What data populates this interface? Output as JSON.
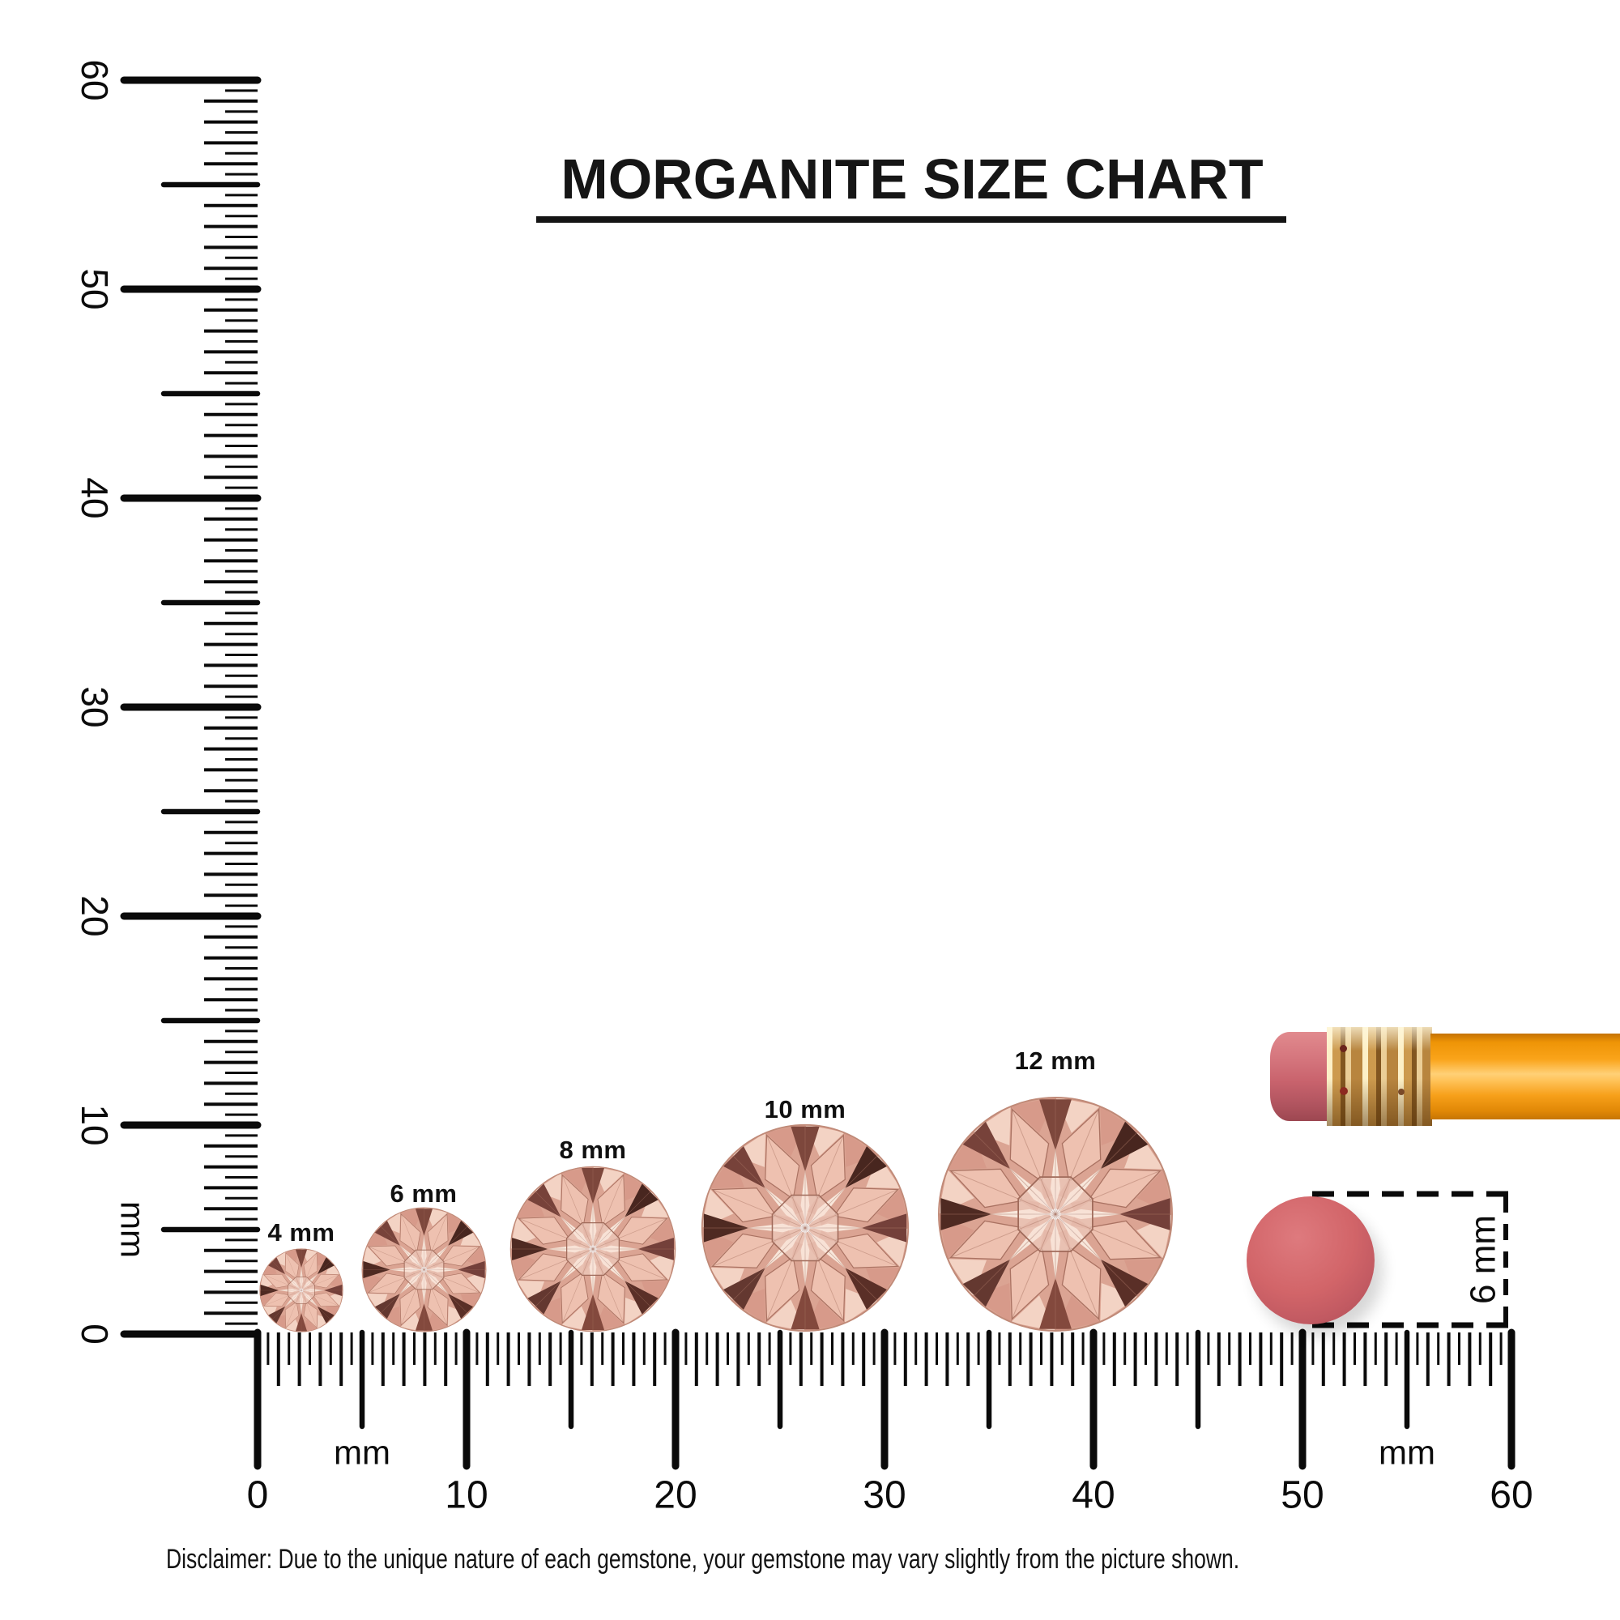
{
  "title": {
    "text": "MORGANITE SIZE CHART"
  },
  "rulers": {
    "unit": "mm",
    "range_mm": [
      0,
      60
    ],
    "tick_step_mm": 0.5,
    "major_step_mm": 10,
    "color": "#0a0a0a",
    "vertical_labels": [
      "0",
      "10",
      "20",
      "30",
      "40",
      "50",
      "60"
    ],
    "horizontal_labels": [
      "0",
      "10",
      "20",
      "30",
      "40",
      "50",
      "60"
    ],
    "vertical_unit_label": "mm",
    "horizontal_unit_labels": [
      "mm",
      "mm"
    ]
  },
  "gems": [
    {
      "label": "4 mm",
      "size_mm": 4
    },
    {
      "label": "6 mm",
      "size_mm": 6
    },
    {
      "label": "8 mm",
      "size_mm": 8
    },
    {
      "label": "10 mm",
      "size_mm": 10
    },
    {
      "label": "12 mm",
      "size_mm": 12
    }
  ],
  "gem_palette": {
    "base": "#dba493",
    "girdle_light": "#f3d3c4",
    "girdle_mid": "#d79a8a",
    "kite": "#eec1b0",
    "kite_edge": "#aa7262",
    "arrows": [
      "#7d473c",
      "#48261f",
      "#74403a",
      "#5a2f27",
      "#83493d",
      "#643830",
      "#4f2a22",
      "#77423a"
    ],
    "ray": "#f8e7db",
    "inner_tri": "#d29482",
    "table_fill": "rgba(248,222,209,0.5)",
    "table_edge": "#9f6a5a",
    "burst": "#ffffff",
    "hairline": "#a87362",
    "rim": "#c08a78"
  },
  "reference_disc": {
    "label": "6 mm",
    "diameter_mm": 6,
    "color": "#cd5e64"
  },
  "pencil": {
    "eraser_color": "#c9636d",
    "ferrule_color": "#d3a055",
    "body_color": "#f9a312",
    "dot_color": "#6b241c"
  },
  "disclaimer": {
    "text": "Disclaimer: Due to the unique nature of each gemstone, your gemstone may vary slightly from the picture shown."
  }
}
